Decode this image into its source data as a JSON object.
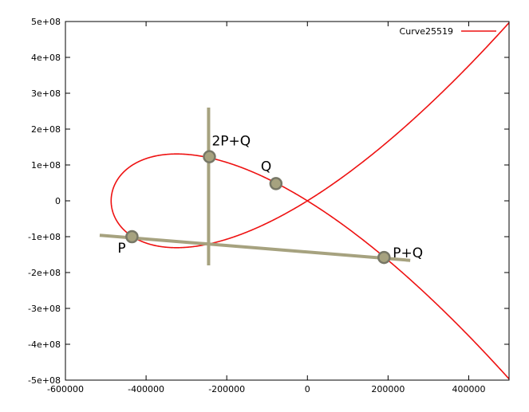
{
  "chart_data": {
    "type": "line",
    "title": "",
    "xlabel": "",
    "ylabel": "",
    "xlim": [
      -600000,
      500000
    ],
    "ylim": [
      -500000000,
      500000000
    ],
    "x_ticks": [
      -600000,
      -400000,
      -200000,
      0,
      200000,
      400000
    ],
    "x_tick_labels": [
      "-600000",
      "-400000",
      "-200000",
      "0",
      "200000",
      "400000"
    ],
    "y_ticks": [
      500000000,
      400000000,
      300000000,
      200000000,
      100000000,
      0,
      -100000000,
      -200000000,
      -300000000,
      -400000000,
      -500000000
    ],
    "y_tick_labels": [
      "5e+08",
      "4e+08",
      "3e+08",
      "2e+08",
      "1e+08",
      "0",
      "-1e+08",
      "-2e+08",
      "-3e+08",
      "-4e+08",
      "-5e+08"
    ],
    "grid": false,
    "legend_position": "top-right",
    "series": [
      {
        "name": "Curve25519",
        "color": "#ee1111",
        "function": "y^2 = x^3 + A*x^2 + x",
        "A": 486662,
        "x_range": [
          -486662,
          500000
        ]
      }
    ],
    "helper_lines": [
      {
        "name": "chord-P-Q",
        "color": "#a6a27f",
        "from": [
          -515000,
          -96000000
        ],
        "to": [
          255000,
          -166000000
        ]
      },
      {
        "name": "vertical-reflection",
        "color": "#a6a27f",
        "from": [
          -245000,
          260000000
        ],
        "to": [
          -245000,
          -180000000
        ]
      }
    ],
    "points": [
      {
        "label": "P",
        "x": -435000,
        "y": -100000000
      },
      {
        "label": "Q",
        "x": -78000,
        "y": 48000000
      },
      {
        "label": "P+Q",
        "x": 190000,
        "y": -158000000
      },
      {
        "label": "2P+Q",
        "x": -243000,
        "y": 123000000
      }
    ],
    "point_color": "#a6a27f"
  }
}
